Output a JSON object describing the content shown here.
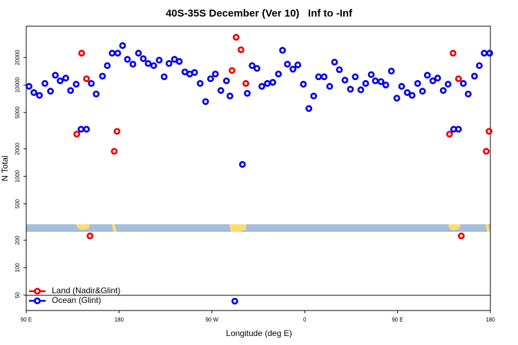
{
  "chart_data": {
    "type": "scatter",
    "title": "40S-35S December (Ver 10)   Inf to -Inf",
    "x_label": "Longitude (deg E)",
    "y_label": "N Total",
    "xlim": [
      90,
      540
    ],
    "xticks": [
      {
        "value": 90,
        "label": "90 E"
      },
      180,
      {
        "value": 270,
        "label": "90 W"
      },
      {
        "value": 360,
        "label": "0"
      },
      {
        "value": 450,
        "label": "90 E"
      },
      {
        "value": 540,
        "label": "180"
      }
    ],
    "ylim": [
      34,
      44000
    ],
    "log_y": true,
    "yticks": [
      50,
      100,
      200,
      500,
      1000,
      2000,
      5000,
      10000,
      20000
    ],
    "legend": "lower left",
    "series": [
      {
        "name": "Land (Nadir&Glint)",
        "color": "#ee0000",
        "x": [
          139.0,
          143.7,
          148.4,
          151.8,
          175.3,
          178.0,
          289.5,
          293.5,
          298.2,
          302.9,
          500.4,
          503.8,
          509.1,
          511.8,
          536.0,
          538.7
        ],
        "values": [
          2900,
          22300,
          11700,
          223,
          1880,
          3110,
          14400,
          33300,
          24300,
          10400,
          2900,
          22300,
          11700,
          223,
          1880,
          3110
        ]
      },
      {
        "name": "Ocean (Glint)",
        "color": "#0000ee",
        "x": [
          92.7,
          97.4,
          102.8,
          108.1,
          113.5,
          118.2,
          122.9,
          128.3,
          133.0,
          138.4,
          143.1,
          148.4,
          153.1,
          157.8,
          163.9,
          168.6,
          173.3,
          178.7,
          183.4,
          188.1,
          193.4,
          198.8,
          203.5,
          208.2,
          213.6,
          218.9,
          223.7,
          228.4,
          233.7,
          238.4,
          243.8,
          248.5,
          253.2,
          258.6,
          263.9,
          268.7,
          273.4,
          278.7,
          284.1,
          287.5,
          292.2,
          299.6,
          304.3,
          309.0,
          313.7,
          318.4,
          323.8,
          329.1,
          334.5,
          338.5,
          343.2,
          348.6,
          353.3,
          358.7,
          364.0,
          368.7,
          373.4,
          378.8,
          384.2,
          388.9,
          393.6,
          399.0,
          404.3,
          409.0,
          414.4,
          419.1,
          424.5,
          428.5,
          433.9,
          438.6,
          444.0,
          449.3,
          454.0,
          459.4,
          464.1,
          469.5,
          474.2,
          478.9,
          484.2,
          488.9,
          494.3,
          499.0,
          504.4,
          509.1,
          513.8,
          518.5,
          524.6,
          529.3,
          534.0,
          539.3
        ],
        "values": [
          9660,
          8260,
          7700,
          10400,
          8550,
          12800,
          11100,
          11900,
          8700,
          10200,
          3280,
          3280,
          10400,
          7970,
          12500,
          16300,
          22300,
          22300,
          27000,
          19100,
          16900,
          22300,
          19400,
          17200,
          16300,
          18700,
          12300,
          17200,
          19100,
          18100,
          13900,
          13200,
          13700,
          10400,
          6580,
          11700,
          13200,
          8700,
          11100,
          7570,
          43,
          1350,
          8110,
          16300,
          15200,
          9660,
          10400,
          10700,
          13200,
          24000,
          16900,
          14900,
          16600,
          10200,
          5530,
          7570,
          12300,
          12300,
          9660,
          17800,
          14700,
          11300,
          9000,
          12300,
          8850,
          10400,
          13000,
          11100,
          10900,
          10000,
          14200,
          7180,
          9660,
          8260,
          7700,
          10400,
          8550,
          12800,
          11100,
          11900,
          8700,
          10200,
          3280,
          3280,
          10400,
          7970,
          12500,
          16300,
          22300,
          22300
        ]
      }
    ]
  }
}
